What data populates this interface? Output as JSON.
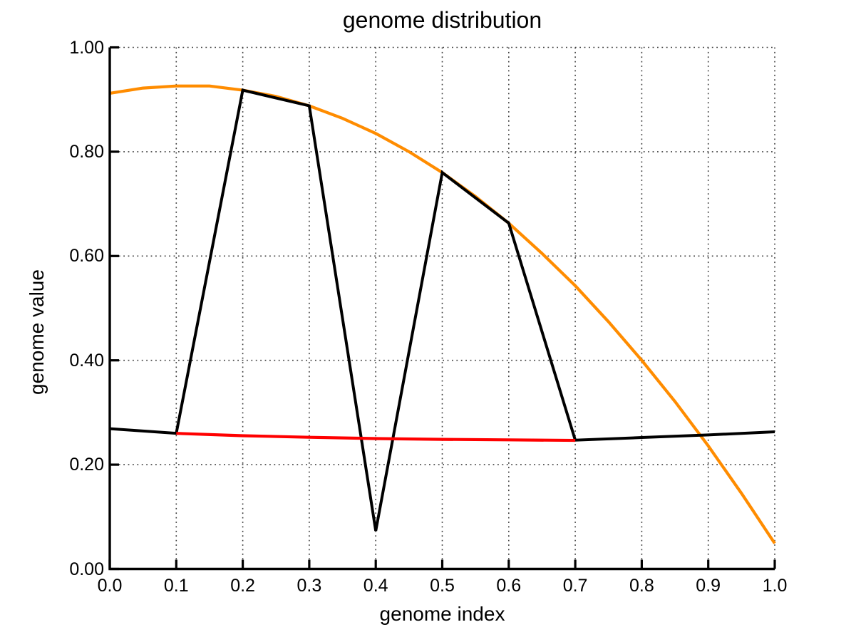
{
  "chart_data": {
    "type": "line",
    "title": "genome distribution",
    "xlabel": "genome index",
    "ylabel": "genome value",
    "xlim": [
      0.0,
      1.0
    ],
    "ylim": [
      0.0,
      1.0
    ],
    "grid": "dotted",
    "legend": "none",
    "x_ticks": [
      "0.0",
      "0.1",
      "0.2",
      "0.3",
      "0.4",
      "0.5",
      "0.6",
      "0.7",
      "0.8",
      "0.9",
      "1.0"
    ],
    "y_ticks": [
      "0.00",
      "0.20",
      "0.40",
      "0.60",
      "0.80",
      "1.00"
    ],
    "series": [
      {
        "name": "orange-curve",
        "color": "#FF8C00",
        "width": 4.2,
        "x": [
          0.0,
          0.05,
          0.1,
          0.15,
          0.2,
          0.25,
          0.3,
          0.35,
          0.4,
          0.45,
          0.5,
          0.55,
          0.6,
          0.65,
          0.7,
          0.75,
          0.8,
          0.85,
          0.9,
          0.95,
          1.0
        ],
        "y": [
          0.912,
          0.922,
          0.926,
          0.926,
          0.918,
          0.906,
          0.888,
          0.864,
          0.835,
          0.8,
          0.76,
          0.714,
          0.663,
          0.605,
          0.543,
          0.474,
          0.4,
          0.321,
          0.236,
          0.145,
          0.049
        ]
      },
      {
        "name": "black-polyline",
        "color": "#000000",
        "width": 4.0,
        "x": [
          0.0,
          0.1,
          0.2,
          0.3,
          0.4,
          0.5,
          0.6,
          0.7,
          0.8,
          0.9,
          1.0
        ],
        "y": [
          0.269,
          0.26,
          0.918,
          0.888,
          0.073,
          0.76,
          0.663,
          0.247,
          0.252,
          0.257,
          0.263
        ]
      },
      {
        "name": "red-curve",
        "color": "#FF0000",
        "width": 4.2,
        "x": [
          0.1,
          0.2,
          0.3,
          0.4,
          0.5,
          0.6,
          0.7
        ],
        "y": [
          0.26,
          0.2555,
          0.2525,
          0.25,
          0.2485,
          0.2475,
          0.2465
        ]
      }
    ]
  }
}
